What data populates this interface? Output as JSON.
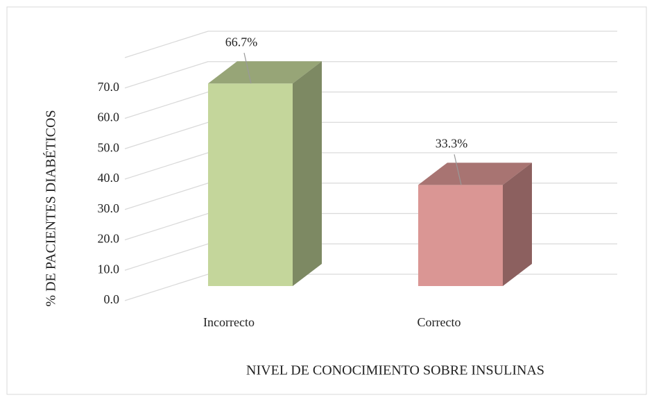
{
  "chart_data": {
    "type": "bar3d",
    "x_label": "NIVEL DE CONOCIMIENTO SOBRE INSULINAS",
    "y_label": "% DE PACIENTES DIABÉTICOS",
    "categories": [
      "Incorrecto",
      "Correcto"
    ],
    "values": [
      66.7,
      33.3
    ],
    "value_labels": [
      "66.7%",
      "33.3%"
    ],
    "colors": [
      "#c4d69b",
      "#da9694"
    ],
    "ylim": [
      0,
      80
    ],
    "yticks": [
      {
        "value": 0,
        "label": "0.0"
      },
      {
        "value": 10,
        "label": "10.0"
      },
      {
        "value": 20,
        "label": "20.0"
      },
      {
        "value": 30,
        "label": "30.0"
      },
      {
        "value": 40,
        "label": "40.0"
      },
      {
        "value": 50,
        "label": "50.0"
      },
      {
        "value": 60,
        "label": "60.0"
      },
      {
        "value": 70,
        "label": "70.0"
      }
    ],
    "grid": true
  }
}
